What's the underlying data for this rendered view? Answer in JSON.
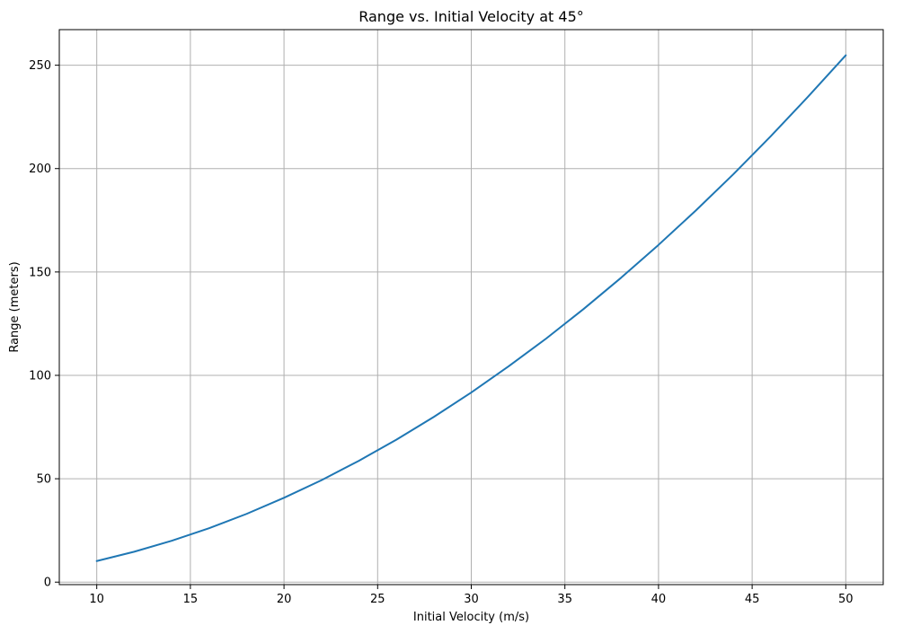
{
  "chart_data": {
    "type": "line",
    "title": "Range vs. Initial Velocity at 45°",
    "xlabel": "Initial Velocity (m/s)",
    "ylabel": "Range (meters)",
    "xlim": [
      8,
      52
    ],
    "ylim": [
      -1.2,
      267.2
    ],
    "xticks": [
      10,
      15,
      20,
      25,
      30,
      35,
      40,
      45,
      50
    ],
    "yticks": [
      0,
      50,
      100,
      150,
      200,
      250
    ],
    "grid": true,
    "legend": "none",
    "series": [
      {
        "color": "#1f77b4",
        "x": [
          10,
          12,
          14,
          16,
          18,
          20,
          22,
          24,
          26,
          28,
          30,
          32,
          34,
          36,
          38,
          40,
          42,
          44,
          46,
          48,
          50
        ],
        "y": [
          10.2,
          14.7,
          20.0,
          26.1,
          33.0,
          40.8,
          49.3,
          58.7,
          68.9,
          79.9,
          91.7,
          104.4,
          117.8,
          132.1,
          147.2,
          163.1,
          179.8,
          197.3,
          215.7,
          234.9,
          254.8
        ]
      }
    ]
  }
}
